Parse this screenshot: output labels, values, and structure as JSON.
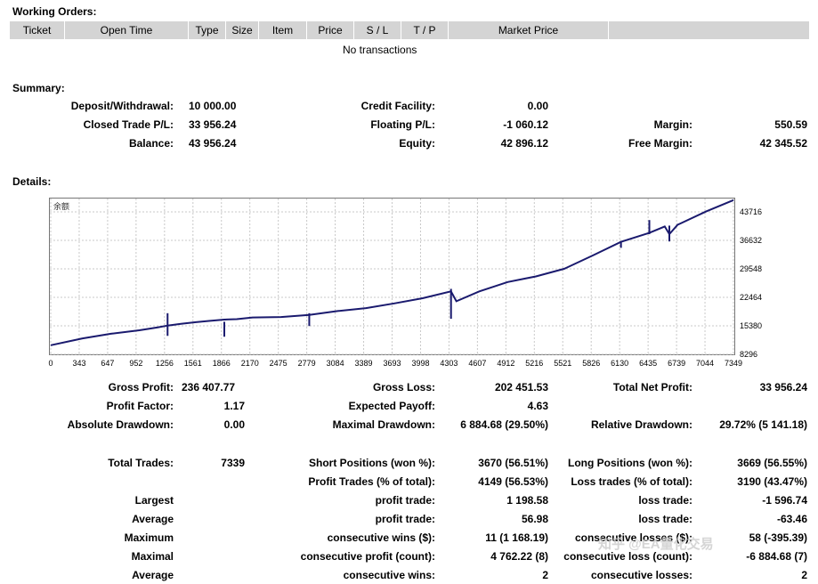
{
  "working_orders": {
    "title": "Working Orders:",
    "columns": [
      "Ticket",
      "Open Time",
      "Type",
      "Size",
      "Item",
      "Price",
      "S / L",
      "T / P",
      "Market Price"
    ],
    "empty_text": "No transactions"
  },
  "summary": {
    "title": "Summary:",
    "deposit_label": "Deposit/Withdrawal:",
    "deposit_value": "10 000.00",
    "credit_label": "Credit Facility:",
    "credit_value": "0.00",
    "closed_pl_label": "Closed Trade P/L:",
    "closed_pl_value": "33 956.24",
    "floating_pl_label": "Floating P/L:",
    "floating_pl_value": "-1 060.12",
    "margin_label": "Margin:",
    "margin_value": "550.59",
    "balance_label": "Balance:",
    "balance_value": "43 956.24",
    "equity_label": "Equity:",
    "equity_value": "42 896.12",
    "free_margin_label": "Free Margin:",
    "free_margin_value": "42 345.52"
  },
  "details": {
    "title": "Details:",
    "gross_profit_label": "Gross Profit:",
    "gross_profit_value": "236 407.77",
    "gross_loss_label": "Gross Loss:",
    "gross_loss_value": "202 451.53",
    "total_net_label": "Total Net Profit:",
    "total_net_value": "33 956.24",
    "profit_factor_label": "Profit Factor:",
    "profit_factor_value": "1.17",
    "expected_payoff_label": "Expected Payoff:",
    "expected_payoff_value": "4.63",
    "abs_dd_label": "Absolute Drawdown:",
    "abs_dd_value": "0.00",
    "max_dd_label": "Maximal Drawdown:",
    "max_dd_value": "6 884.68 (29.50%)",
    "rel_dd_label": "Relative Drawdown:",
    "rel_dd_value": "29.72% (5 141.18)",
    "total_trades_label": "Total Trades:",
    "total_trades_value": "7339",
    "short_label": "Short Positions (won %):",
    "short_value": "3670 (56.51%)",
    "long_label": "Long Positions (won %):",
    "long_value": "3669 (56.55%)",
    "profit_trades_label": "Profit Trades (% of total):",
    "profit_trades_value": "4149 (56.53%)",
    "loss_trades_label": "Loss trades (% of total):",
    "loss_trades_value": "3190 (43.47%)",
    "largest_label": "Largest",
    "largest_profit_label": "profit trade:",
    "largest_profit_value": "1 198.58",
    "largest_loss_label": "loss trade:",
    "largest_loss_value": "-1 596.74",
    "average_label": "Average",
    "avg_profit_label": "profit trade:",
    "avg_profit_value": "56.98",
    "avg_loss_label": "loss trade:",
    "avg_loss_value": "-63.46",
    "maximum_label": "Maximum",
    "max_cons_wins_label": "consecutive wins ($):",
    "max_cons_wins_value": "11 (1 168.19)",
    "max_cons_losses_label": "consecutive losses ($):",
    "max_cons_losses_value": "58 (-395.39)",
    "maximal_label": "Maximal",
    "maximal_cons_profit_label": "consecutive profit (count):",
    "maximal_cons_profit_value": "4 762.22 (8)",
    "maximal_cons_loss_label": "consecutive loss (count):",
    "maximal_cons_loss_value": "-6 884.68 (7)",
    "average2_label": "Average",
    "avg_cons_wins_label": "consecutive wins:",
    "avg_cons_wins_value": "2",
    "avg_cons_losses_label": "consecutive losses:",
    "avg_cons_losses_value": "2"
  },
  "watermark_text": "知乎 @EA量化交易",
  "chart_data": {
    "type": "line",
    "title": "余额",
    "x_ticks": [
      0,
      343,
      647,
      952,
      1256,
      1561,
      1866,
      2170,
      2475,
      2779,
      3084,
      3389,
      3693,
      3998,
      4303,
      4607,
      4912,
      5216,
      5521,
      5826,
      6130,
      6435,
      6739,
      7044,
      7349
    ],
    "y_ticks": [
      8296,
      15380,
      22464,
      29548,
      36632,
      43716
    ],
    "xlim": [
      0,
      7339
    ],
    "ylim": [
      8296,
      43716
    ],
    "line_color": "#1a1a6e",
    "grid": true,
    "series": [
      {
        "x": [
          0,
          343,
          647,
          952,
          1150,
          1256,
          1400,
          1561,
          1700,
          1866,
          2000,
          2170,
          2475,
          2779,
          3084,
          3389,
          3693,
          3998,
          4303,
          4360,
          4607,
          4912,
          5100,
          5216,
          5521,
          5826,
          6130,
          6435,
          6600,
          6650,
          6739,
          7044,
          7339
        ],
        "y": [
          10000,
          11600,
          12700,
          13500,
          14200,
          14600,
          15000,
          15400,
          15700,
          16000,
          16100,
          16500,
          16600,
          17100,
          18000,
          18700,
          19800,
          21000,
          22600,
          20300,
          22600,
          24800,
          25600,
          26100,
          27900,
          31000,
          34200,
          36300,
          37800,
          36000,
          38200,
          41300,
          43956
        ]
      }
    ],
    "spikes": [
      {
        "x": 1256,
        "low": 12200,
        "high": 17500
      },
      {
        "x": 1866,
        "low": 12000,
        "high": 15500
      },
      {
        "x": 2779,
        "low": 14500,
        "high": 17500
      },
      {
        "x": 4303,
        "low": 16200,
        "high": 23200
      },
      {
        "x": 6130,
        "low": 32800,
        "high": 34300
      },
      {
        "x": 6435,
        "low": 36000,
        "high": 39300
      },
      {
        "x": 6650,
        "low": 34300,
        "high": 38000
      }
    ]
  }
}
